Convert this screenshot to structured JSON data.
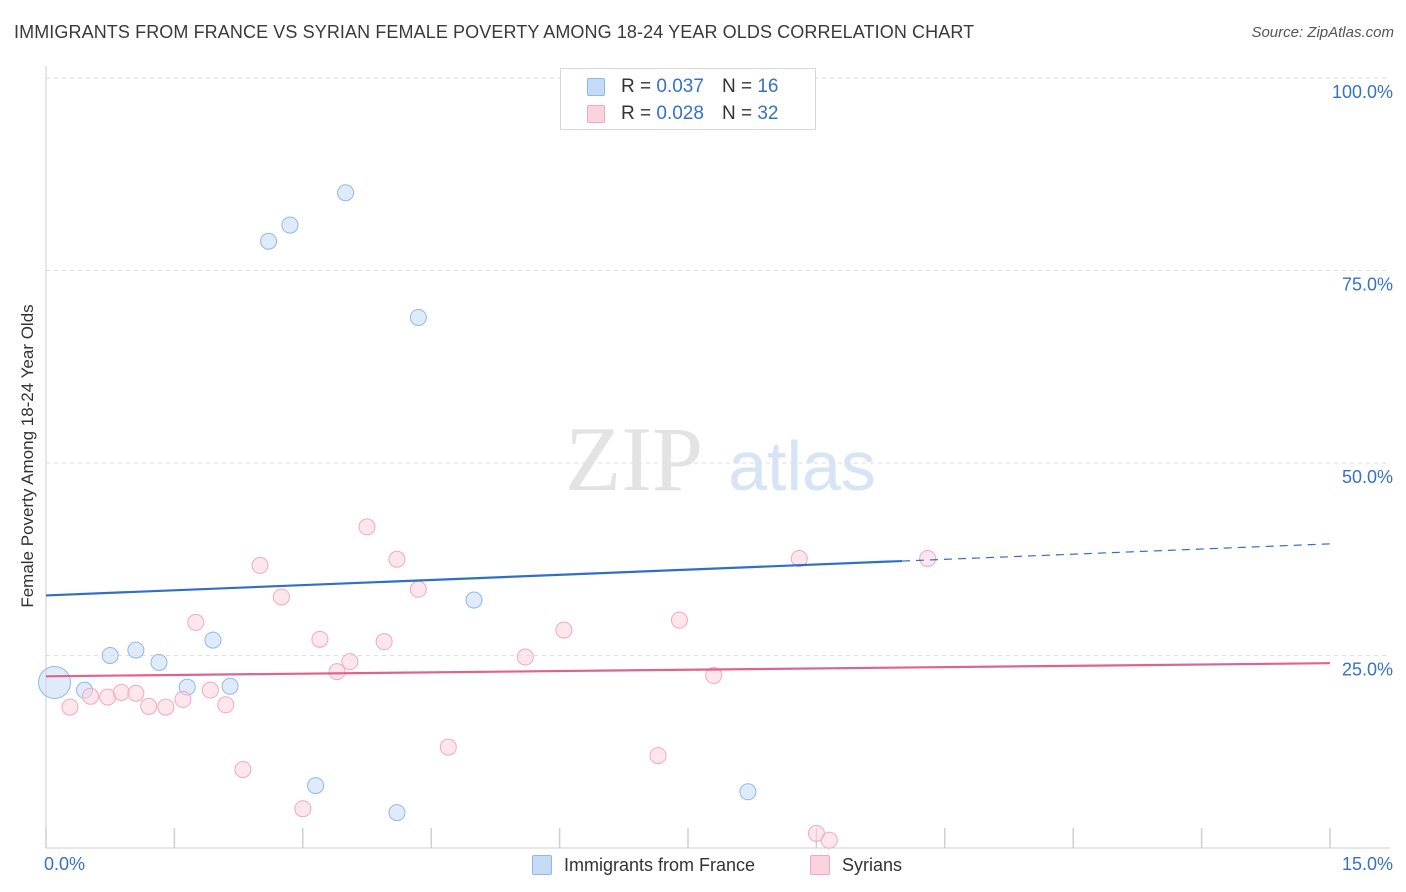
{
  "title": "IMMIGRANTS FROM FRANCE VS SYRIAN FEMALE POVERTY AMONG 18-24 YEAR OLDS CORRELATION CHART",
  "source": "Source: ZipAtlas.com",
  "watermark": {
    "zip": "ZIP",
    "atlas": "atlas"
  },
  "legend_top": [
    {
      "r_label": "R =",
      "r_value": "0.037",
      "n_label": "N =",
      "n_value": "16"
    },
    {
      "r_label": "R =",
      "r_value": "0.028",
      "n_label": "N =",
      "n_value": "32"
    }
  ],
  "legend_bottom": [
    "Immigrants from France",
    "Syrians"
  ],
  "chart_data": {
    "type": "scatter",
    "title": "IMMIGRANTS FROM FRANCE VS SYRIAN FEMALE POVERTY AMONG 18-24 YEAR OLDS CORRELATION CHART",
    "xlabel": "",
    "ylabel": "Female Poverty Among 18-24 Year Olds",
    "xlim": [
      0,
      15
    ],
    "ylim": [
      0,
      100
    ],
    "x_tick_labels": [
      "0.0%",
      "15.0%"
    ],
    "y_ticks": [
      25,
      50,
      75,
      100
    ],
    "y_tick_labels": [
      "25.0%",
      "50.0%",
      "75.0%",
      "100.0%"
    ],
    "grid": "horizontal dashed",
    "legend_position": "top-center",
    "colors": {
      "france": "#8fb8ea",
      "france_line": "#2f6fca",
      "syrians": "#f4a7be",
      "syrians_line": "#e0628e",
      "tick_label": "#3572c6"
    },
    "series": [
      {
        "name": "Immigrants from France",
        "points": [
          [
            0.1,
            21.5,
            2
          ],
          [
            0.45,
            20.5,
            1
          ],
          [
            0.75,
            25.0,
            1
          ],
          [
            1.05,
            25.7,
            1
          ],
          [
            1.32,
            24.1,
            1
          ],
          [
            1.65,
            20.9,
            1
          ],
          [
            1.95,
            27.0,
            1
          ],
          [
            2.15,
            21.0,
            1
          ],
          [
            2.6,
            78.8,
            1
          ],
          [
            2.85,
            80.9,
            1
          ],
          [
            3.15,
            8.1,
            1
          ],
          [
            3.5,
            85.1,
            1
          ],
          [
            4.1,
            4.6,
            1
          ],
          [
            4.35,
            68.9,
            1
          ],
          [
            5.0,
            32.2,
            1
          ],
          [
            8.2,
            7.3,
            1
          ]
        ],
        "trend": {
          "y_at_x0": 32.8,
          "y_at_xmax": 39.5,
          "solid_until_x": 10.0
        }
      },
      {
        "name": "Syrians",
        "points": [
          [
            0.28,
            18.3,
            1
          ],
          [
            0.52,
            19.7,
            1
          ],
          [
            0.72,
            19.6,
            1
          ],
          [
            0.88,
            20.2,
            1
          ],
          [
            1.05,
            20.1,
            1
          ],
          [
            1.2,
            18.4,
            1
          ],
          [
            1.4,
            18.3,
            1
          ],
          [
            1.6,
            19.3,
            1
          ],
          [
            1.75,
            29.3,
            1
          ],
          [
            1.92,
            20.5,
            1
          ],
          [
            2.1,
            18.6,
            1
          ],
          [
            2.3,
            10.2,
            1
          ],
          [
            2.5,
            36.7,
            1
          ],
          [
            2.75,
            32.6,
            1
          ],
          [
            3.0,
            5.1,
            1
          ],
          [
            3.2,
            27.1,
            1
          ],
          [
            3.4,
            22.9,
            1
          ],
          [
            3.55,
            24.2,
            1
          ],
          [
            3.75,
            41.7,
            1
          ],
          [
            3.95,
            26.8,
            1
          ],
          [
            4.1,
            37.5,
            1
          ],
          [
            4.35,
            33.6,
            1
          ],
          [
            4.7,
            13.1,
            1
          ],
          [
            5.6,
            24.8,
            1
          ],
          [
            6.05,
            28.3,
            1
          ],
          [
            7.15,
            12.0,
            1
          ],
          [
            7.4,
            29.6,
            1
          ],
          [
            7.8,
            22.4,
            1
          ],
          [
            8.8,
            37.6,
            1
          ],
          [
            9.0,
            1.9,
            1
          ],
          [
            9.15,
            1.0,
            1
          ],
          [
            10.3,
            37.6,
            1
          ]
        ],
        "trend": {
          "y_at_x0": 22.3,
          "y_at_xmax": 24.0
        }
      }
    ]
  }
}
